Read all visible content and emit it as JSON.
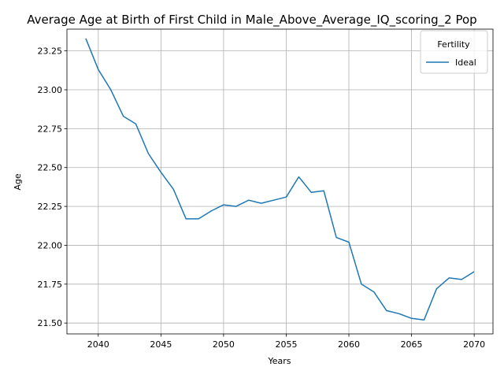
{
  "chart_data": {
    "type": "line",
    "title": "Average Age at Birth of First Child in Male_Above_Average_IQ_scoring_2 Pop",
    "xlabel": "Years",
    "ylabel": "Age",
    "xlim": [
      2037.5,
      2071.5
    ],
    "ylim": [
      21.43,
      23.39
    ],
    "x_ticks": [
      2040,
      2045,
      2050,
      2055,
      2060,
      2065,
      2070
    ],
    "y_ticks": [
      21.5,
      21.75,
      22.0,
      22.25,
      22.5,
      22.75,
      23.0,
      23.25
    ],
    "x_tick_labels": [
      "2040",
      "2045",
      "2050",
      "2055",
      "2060",
      "2065",
      "2070"
    ],
    "y_tick_labels": [
      "21.50",
      "21.75",
      "22.00",
      "22.25",
      "22.50",
      "22.75",
      "23.00",
      "23.25"
    ],
    "grid": true,
    "legend": {
      "title": "Fertility",
      "placement": "top-right"
    },
    "series": [
      {
        "name": "Ideal",
        "color": "#1f77b4",
        "x": [
          2039,
          2040,
          2041,
          2042,
          2043,
          2044,
          2045,
          2046,
          2047,
          2048,
          2049,
          2050,
          2051,
          2052,
          2053,
          2054,
          2055,
          2056,
          2057,
          2058,
          2059,
          2060,
          2061,
          2062,
          2063,
          2064,
          2065,
          2066,
          2067,
          2068,
          2069,
          2070
        ],
        "y": [
          23.33,
          23.13,
          23.0,
          22.83,
          22.78,
          22.59,
          22.47,
          22.36,
          22.17,
          22.17,
          22.22,
          22.26,
          22.25,
          22.29,
          22.27,
          22.29,
          22.31,
          22.44,
          22.34,
          22.35,
          22.05,
          22.02,
          21.75,
          21.7,
          21.58,
          21.56,
          21.53,
          21.52,
          21.72,
          21.79,
          21.78,
          21.83
        ]
      }
    ]
  }
}
